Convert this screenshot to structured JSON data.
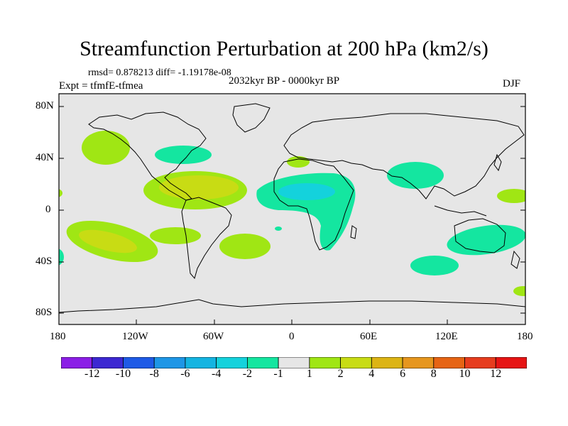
{
  "title": "Streamfunction Perturbation at 200 hPa (km2/s)",
  "stats_line": "rmsd= 0.878213 diff= -1.19178e-08",
  "experiment": "Expt = tfmfE-tfmea",
  "period": "2032kyr BP - 0000kyr BP",
  "season": "DJF",
  "lat_ticks": [
    "80N",
    "40N",
    "0",
    "40S",
    "80S"
  ],
  "lon_ticks": [
    "180",
    "120W",
    "60W",
    "0",
    "60E",
    "120E",
    "180"
  ],
  "colorbar": {
    "labels": [
      "-12",
      "-10",
      "-8",
      "-6",
      "-4",
      "-2",
      "-1",
      "1",
      "2",
      "4",
      "6",
      "8",
      "10",
      "12"
    ],
    "colors": [
      "#8b1ee6",
      "#3c28d2",
      "#1e5ae6",
      "#1e96e6",
      "#14b4e1",
      "#14d2dc",
      "#14e6a0",
      "#e6e6e6",
      "#a0e614",
      "#c8dc14",
      "#dcb414",
      "#e6961e",
      "#e66414",
      "#e63c1e",
      "#e61414"
    ]
  },
  "colors": {
    "background": "#e6e6e6",
    "positive_1_2": "#a0e614",
    "positive_2_4": "#c8dc14",
    "negative_1_2": "#14e6a0",
    "negative_2_4": "#14d2dc",
    "coast": "#000000"
  }
}
